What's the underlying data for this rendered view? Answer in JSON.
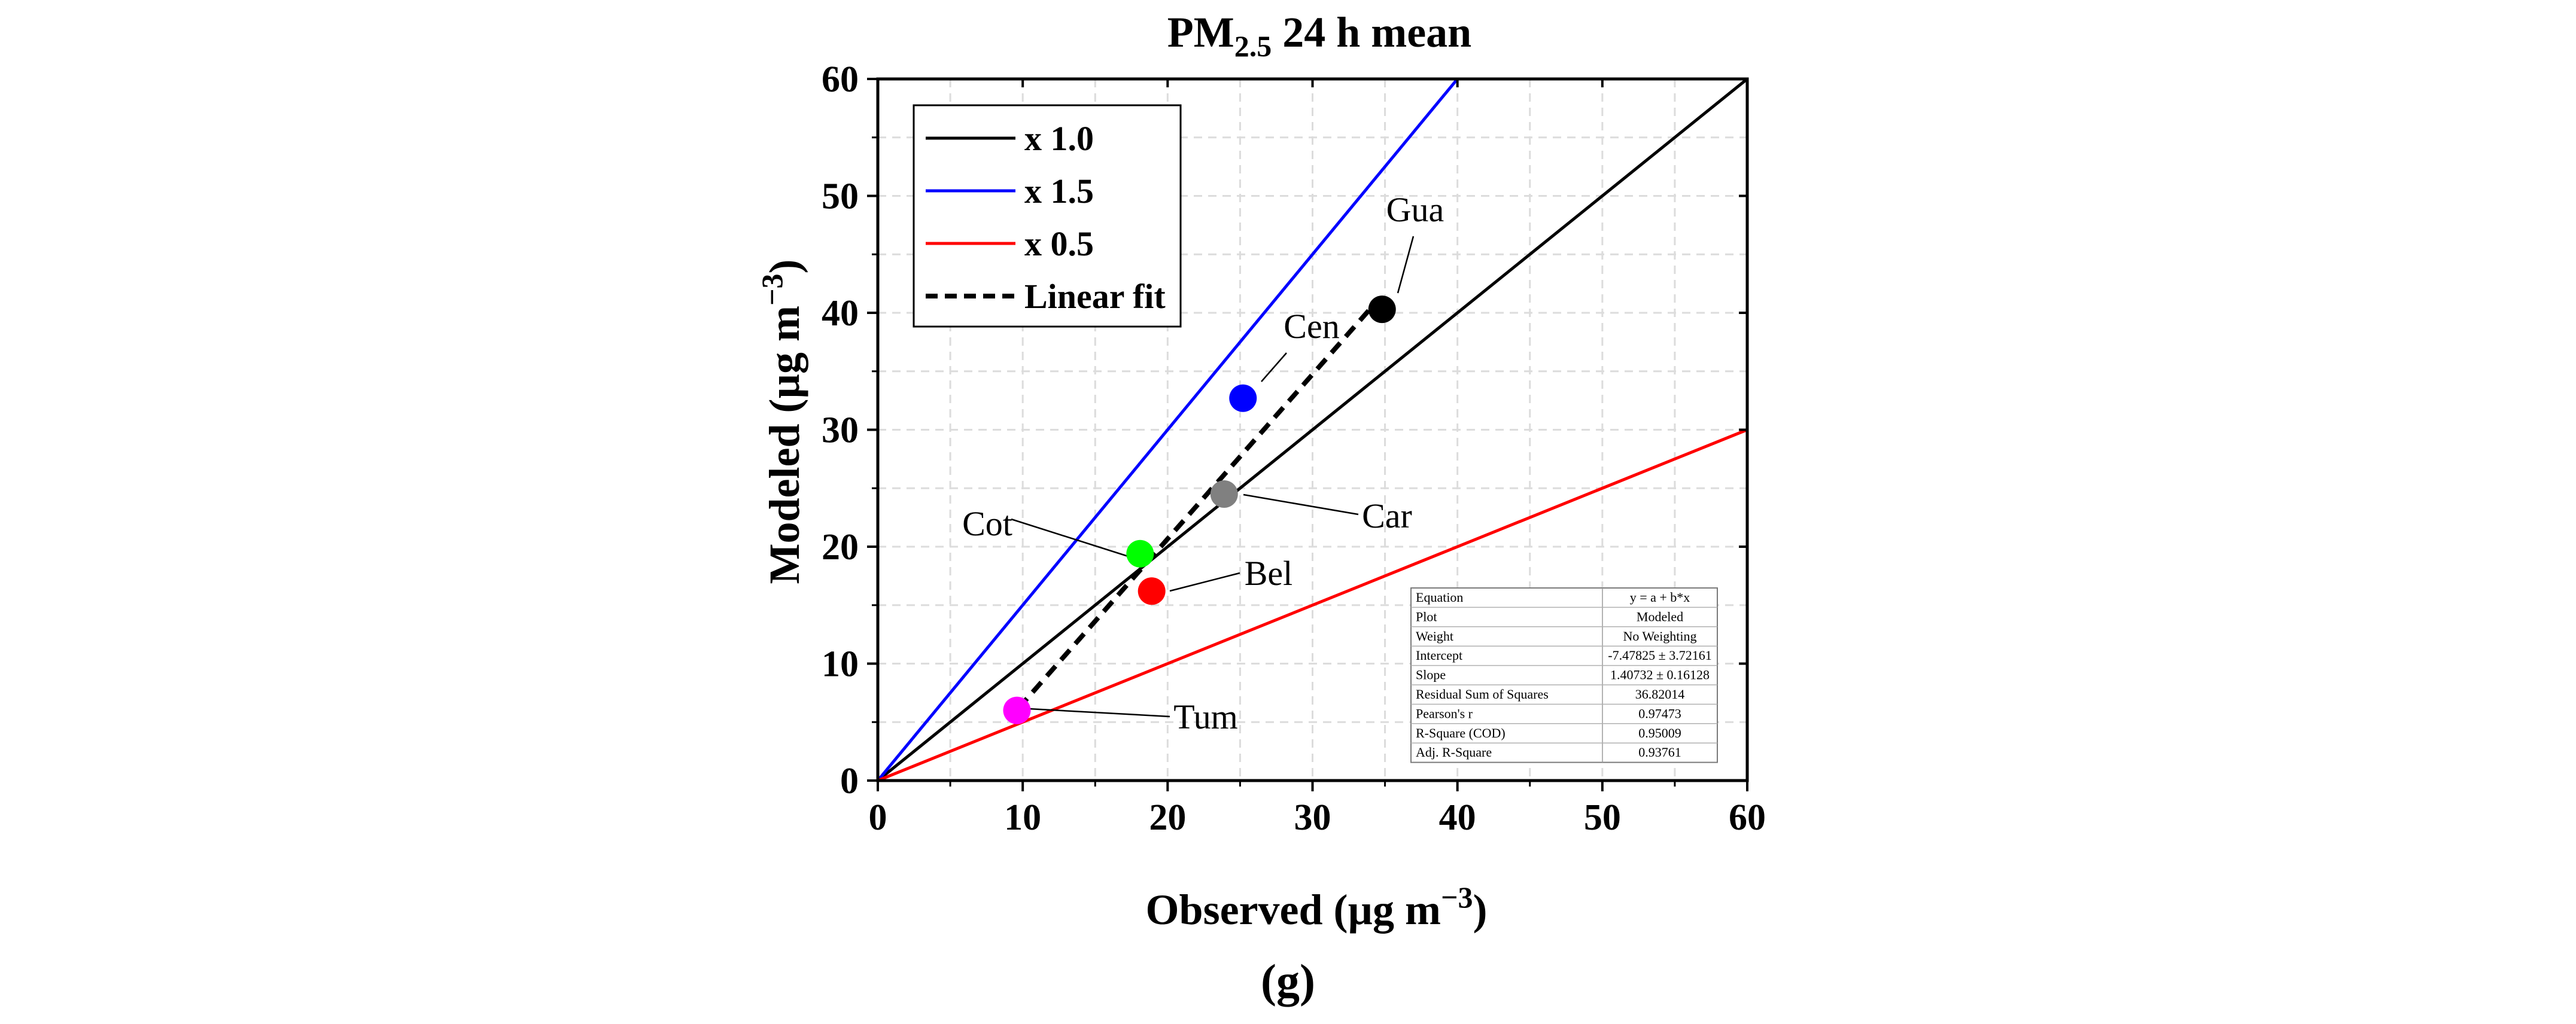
{
  "figure": {
    "panel_label": "(g)"
  },
  "chart_data": {
    "type": "scatter",
    "title": {
      "main": "PM",
      "sub": "2.5",
      "rest": " 24 h mean"
    },
    "xlabel": {
      "text": "Observed (µg m",
      "sup": "−3",
      "close": ")"
    },
    "ylabel": {
      "text": "Modeled (µg m",
      "sup": "−3",
      "close": ")"
    },
    "xlim": [
      0,
      60
    ],
    "ylim": [
      0,
      60
    ],
    "xticks": [
      0,
      10,
      20,
      30,
      40,
      50,
      60
    ],
    "yticks": [
      0,
      10,
      20,
      30,
      40,
      50,
      60
    ],
    "grid": true,
    "reference_lines": [
      {
        "name": "x 1.0",
        "slope": 1.0,
        "color": "#000000"
      },
      {
        "name": "x 1.5",
        "slope": 1.5,
        "color": "#0000ff"
      },
      {
        "name": "x 0.5",
        "slope": 0.5,
        "color": "#ff0000"
      }
    ],
    "fit_line": {
      "name": "Linear fit",
      "intercept": -7.47825,
      "slope": 1.40732,
      "x_range": [
        9.7,
        34.5
      ],
      "color": "#000000"
    },
    "points": [
      {
        "label": "Gua",
        "x": 34.8,
        "y": 40.3,
        "color": "#000000"
      },
      {
        "label": "Cen",
        "x": 25.2,
        "y": 32.7,
        "color": "#0000ff"
      },
      {
        "label": "Car",
        "x": 23.9,
        "y": 24.5,
        "color": "#808080"
      },
      {
        "label": "Cot",
        "x": 18.1,
        "y": 19.4,
        "color": "#00ff00"
      },
      {
        "label": "Bel",
        "x": 18.9,
        "y": 16.2,
        "color": "#ff0000"
      },
      {
        "label": "Tum",
        "x": 9.6,
        "y": 6.0,
        "color": "#ff00ff"
      }
    ],
    "legend": {
      "position": "top-left",
      "entries": [
        {
          "label": "x 1.0",
          "color": "#000000",
          "dash": false
        },
        {
          "label": "x 1.5",
          "color": "#0000ff",
          "dash": false
        },
        {
          "label": "x 0.5",
          "color": "#ff0000",
          "dash": false
        },
        {
          "label": "Linear fit",
          "color": "#000000",
          "dash": true
        }
      ]
    },
    "stats_table": {
      "position": "bottom-right",
      "rows": [
        [
          "Equation",
          "y = a + b*x"
        ],
        [
          "Plot",
          "Modeled"
        ],
        [
          "Weight",
          "No Weighting"
        ],
        [
          "Intercept",
          "-7.47825 ± 3.72161"
        ],
        [
          "Slope",
          "1.40732 ± 0.16128"
        ],
        [
          "Residual Sum of Squares",
          "36.82014"
        ],
        [
          "Pearson's r",
          "0.97473"
        ],
        [
          "R-Square (COD)",
          "0.95009"
        ],
        [
          "Adj. R-Square",
          "0.93761"
        ]
      ]
    }
  }
}
